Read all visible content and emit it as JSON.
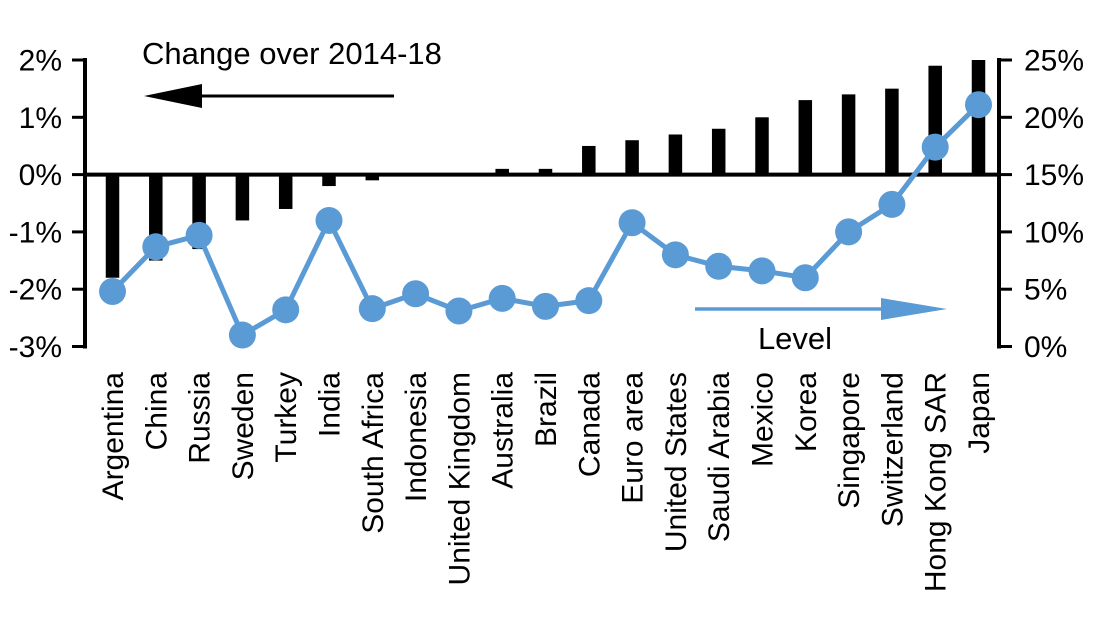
{
  "chart_data": {
    "type": "bar",
    "subtype": "dual-axis-bar-and-line",
    "title": "Change over 2014-18",
    "categories": [
      "Argentina",
      "China",
      "Russia",
      "Sweden",
      "Turkey",
      "India",
      "South Africa",
      "Indonesia",
      "United Kingdom",
      "Australia",
      "Brazil",
      "Canada",
      "Euro area",
      "United States",
      "Saudi Arabia",
      "Mexico",
      "Korea",
      "Singapore",
      "Switzerland",
      "Hong Kong SAR",
      "Japan"
    ],
    "series": [
      {
        "name": "Change over 2014-18",
        "type": "bar",
        "axis": "left",
        "color": "#000000",
        "values": [
          -1.8,
          -1.5,
          -1.3,
          -0.8,
          -0.6,
          -0.2,
          -0.1,
          0.0,
          0.0,
          0.1,
          0.1,
          0.5,
          0.6,
          0.7,
          0.8,
          1.0,
          1.3,
          1.4,
          1.5,
          1.9,
          2.0
        ]
      },
      {
        "name": "Level",
        "type": "line",
        "axis": "right",
        "color": "#5B9BD5",
        "values": [
          4.8,
          8.7,
          9.7,
          1.0,
          3.2,
          11.0,
          3.3,
          4.6,
          3.1,
          4.2,
          3.5,
          4.0,
          10.8,
          8.0,
          7.0,
          6.6,
          6.0,
          10.0,
          12.4,
          17.4,
          21.1
        ]
      }
    ],
    "left_axis": {
      "range": [
        -3,
        2
      ],
      "unit": "percent",
      "grid": false,
      "ticks": [
        {
          "label": "2%",
          "value": 2
        },
        {
          "label": "1%",
          "value": 1
        },
        {
          "label": "0%",
          "value": 0
        },
        {
          "label": "-1%",
          "value": -1
        },
        {
          "label": "-2%",
          "value": -2
        },
        {
          "label": "-3%",
          "value": -3
        }
      ]
    },
    "right_axis": {
      "range": [
        0,
        25
      ],
      "unit": "percent",
      "ticks": [
        {
          "label": "25%",
          "value": 25
        },
        {
          "label": "20%",
          "value": 20
        },
        {
          "label": "15%",
          "value": 15
        },
        {
          "label": "10%",
          "value": 10
        },
        {
          "label": "5%",
          "value": 5
        },
        {
          "label": "0%",
          "value": 0
        }
      ]
    },
    "annotations": {
      "change_arrow_label": "Change over 2014-18",
      "change_arrow_direction": "left",
      "level_arrow_label": "Level",
      "level_arrow_direction": "right"
    },
    "legend_position": "none"
  },
  "colors": {
    "bar": "#000000",
    "line": "#5B9BD5",
    "text": "#000000",
    "background": "#FFFFFF"
  }
}
